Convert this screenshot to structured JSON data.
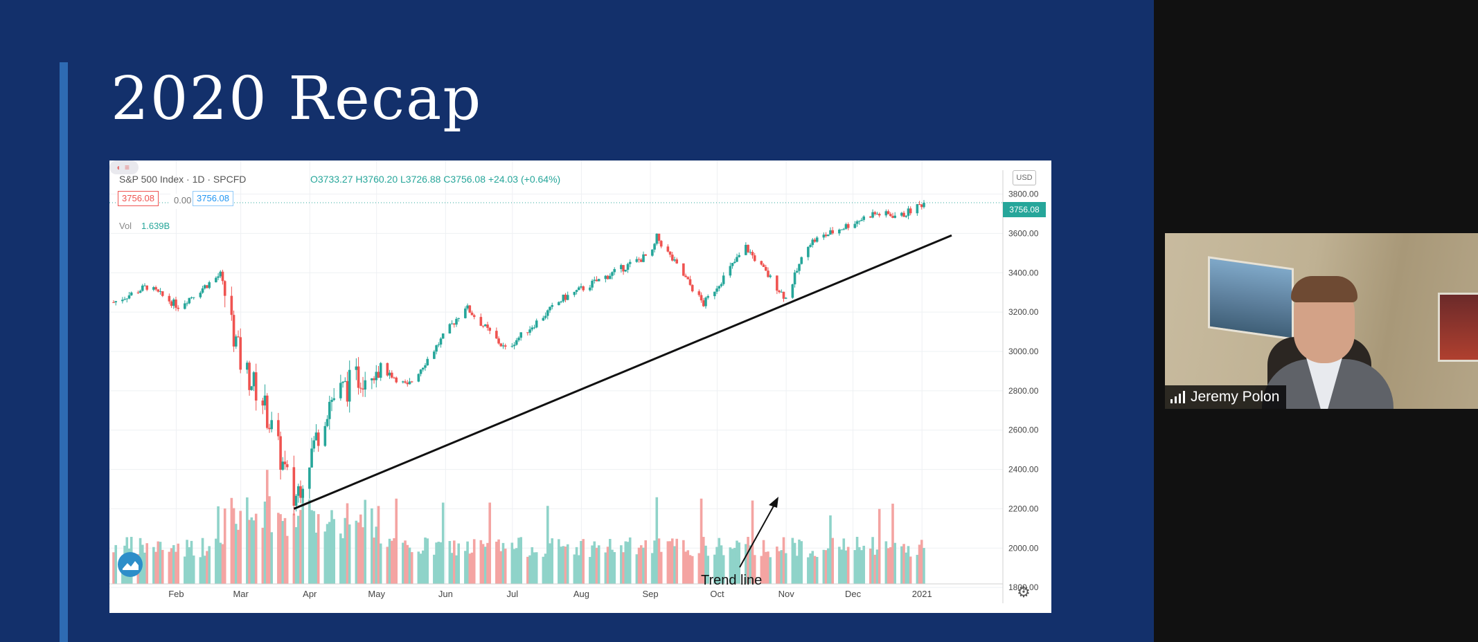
{
  "slide": {
    "title": "2020 Recap"
  },
  "chart": {
    "symbol_title": "S&P 500 Index · 1D · SPCFD",
    "ohlc_text": "O3733.27  H3760.20  L3726.88  C3756.08  +24.03 (+0.64%)",
    "last_box": "3756.08",
    "change_box": "0.00",
    "bid_box": "3756.08",
    "vol_label": "Vol",
    "vol_value": "1.639B",
    "currency": "USD",
    "price_tag": "3756.08",
    "annotation": "Trend line",
    "colors": {
      "up": "#26a69a",
      "down": "#ef5350",
      "vol_up": "#8fd3c9",
      "vol_down": "#f4a4a2"
    },
    "icons": [
      "tradingview-logo-icon",
      "gear-icon"
    ]
  },
  "chart_data": {
    "type": "candlestick",
    "title": "S&P 500 Index · 1D · SPCFD",
    "y_ticks": [
      "3800.00",
      "3600.00",
      "3400.00",
      "3200.00",
      "3000.00",
      "2800.00",
      "2600.00",
      "2400.00",
      "2200.00",
      "2000.00",
      "1800.00"
    ],
    "x_ticks": [
      "Feb",
      "Mar",
      "Apr",
      "May",
      "Jun",
      "Jul",
      "Aug",
      "Sep",
      "Oct",
      "Nov",
      "Dec",
      "2021"
    ],
    "ylim": [
      1790,
      3830
    ],
    "monthly_closes": [
      {
        "x": "2020-01",
        "y": 3320
      },
      {
        "x": "2020-02",
        "y": 3380
      },
      {
        "x": "2020-03",
        "y": 2500
      },
      {
        "x": "2020-04",
        "y": 2900
      },
      {
        "x": "2020-05",
        "y": 3050
      },
      {
        "x": "2020-06",
        "y": 3100
      },
      {
        "x": "2020-07",
        "y": 3270
      },
      {
        "x": "2020-08",
        "y": 3500
      },
      {
        "x": "2020-09",
        "y": 3360
      },
      {
        "x": "2020-10",
        "y": 3270
      },
      {
        "x": "2020-11",
        "y": 3620
      },
      {
        "x": "2020-12",
        "y": 3756
      }
    ],
    "trend_line": [
      {
        "x": "2020-03-23",
        "y": 2200
      },
      {
        "x": "2020-12-31",
        "y": 3590
      }
    ],
    "last_close": 3756.08,
    "grid": true
  },
  "video": {
    "participant_name": "Jeremy Polon",
    "signal_icon": "signal-bars-icon"
  }
}
